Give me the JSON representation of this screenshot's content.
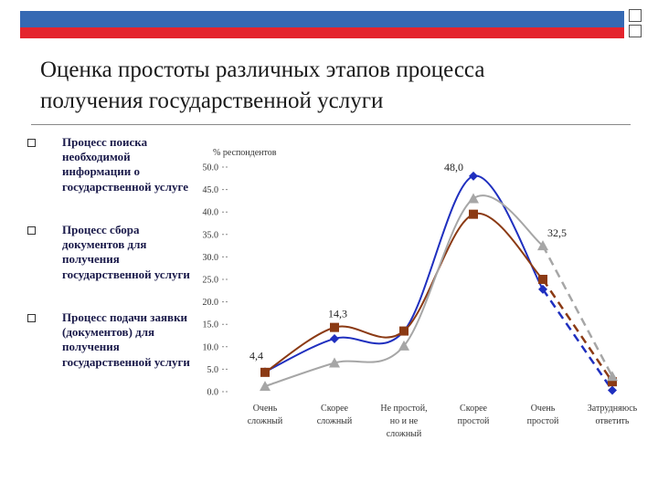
{
  "slide": {
    "title_line1": "Оценка простоты различных этапов процесса",
    "title_line2": "получения государственной услуги",
    "bullets": [
      "Процесс поиска необходимой информации о государственной услуге",
      "Процесс сбора документов для получения государственной услуги",
      "Процесс подачи заявки (документов) для получения государственной услуги"
    ]
  },
  "chart_data": {
    "type": "line",
    "ylabel": "% респондентов",
    "ylim": [
      0,
      50
    ],
    "yticks": [
      "0.0",
      "5.0",
      "10.0",
      "15.0",
      "20.0",
      "25.0",
      "30.0",
      "35.0",
      "40.0",
      "45.0",
      "50.0"
    ],
    "categories": [
      [
        "Очень",
        "сложный"
      ],
      [
        "Скорее",
        "сложный"
      ],
      [
        "Не простой,",
        "но и не",
        "сложный"
      ],
      [
        "Скорее",
        "простой"
      ],
      [
        "Очень",
        "простой"
      ],
      [
        "Затрудняюсь",
        "ответить"
      ]
    ],
    "series": [
      {
        "color": "#1f2fbf",
        "marker": "diamond",
        "values": [
          4.4,
          11.8,
          13.5,
          48.0,
          22.8,
          0.3
        ]
      },
      {
        "color": "#8b3a14",
        "marker": "square",
        "values": [
          4.3,
          14.3,
          13.5,
          39.5,
          25.0,
          2.2
        ]
      },
      {
        "color": "#a6a6a6",
        "marker": "triangle",
        "values": [
          1.2,
          6.4,
          10.2,
          43.0,
          32.5,
          3.4
        ]
      }
    ],
    "data_labels": [
      {
        "text": "4,4",
        "category": 0,
        "value": 4.4
      },
      {
        "text": "14,3",
        "category": 1,
        "value": 14.3
      },
      {
        "text": "48,0",
        "category": 3,
        "value": 48.0
      },
      {
        "text": "32,5",
        "category": 4,
        "value": 32.5
      }
    ],
    "grid": false
  }
}
